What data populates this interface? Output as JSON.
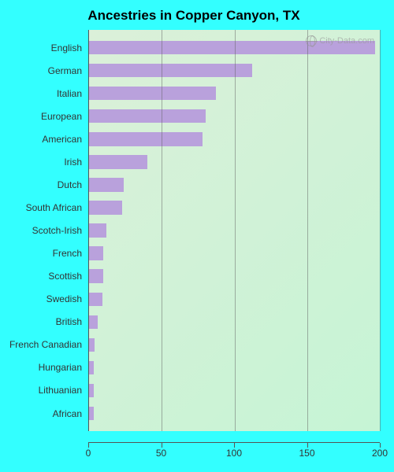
{
  "title": "Ancestries in Copper Canyon, TX",
  "watermark": "City-Data.com",
  "chart": {
    "type": "bar-horizontal",
    "xlim": [
      0,
      200
    ],
    "xticks": [
      0,
      50,
      100,
      150,
      200
    ],
    "tick_fontsize": 12,
    "label_fontsize": 12,
    "title_fontsize": 17,
    "bar_color": "#b9a1dc",
    "axis_color": "#555555",
    "grid_color": "rgba(100,100,100,0.5)",
    "text_color": "#333333",
    "background_color": "#33ffff",
    "plot_gradient_from": "#dbf0d9",
    "plot_gradient_to": "#c6f4d5",
    "categories": [
      "English",
      "German",
      "Italian",
      "European",
      "American",
      "Irish",
      "Dutch",
      "South African",
      "Scotch-Irish",
      "French",
      "Scottish",
      "Swedish",
      "British",
      "French Canadian",
      "Hungarian",
      "Lithuanian",
      "African"
    ],
    "values": [
      197,
      112,
      87,
      80,
      78,
      40,
      24,
      23,
      12,
      10,
      10,
      9,
      6,
      4,
      3,
      3,
      3
    ]
  }
}
